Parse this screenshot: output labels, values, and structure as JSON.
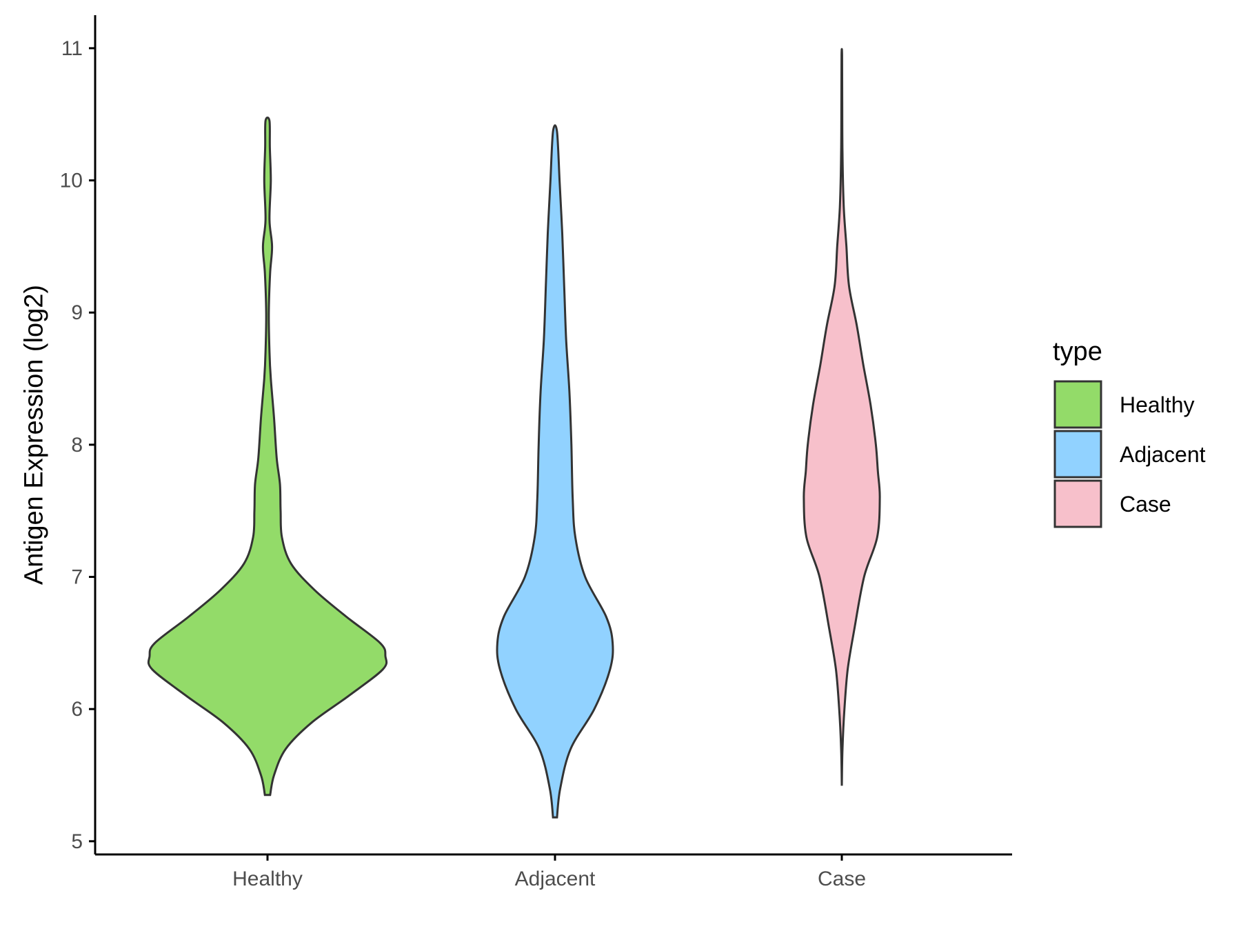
{
  "chart_data": {
    "type": "violin",
    "title": "",
    "xlabel": "",
    "ylabel": "Antigen Expression (log2)",
    "ylim": [
      4.9,
      11.25
    ],
    "yticks": [
      5,
      6,
      7,
      8,
      9,
      10,
      11
    ],
    "categories": [
      "Healthy",
      "Adjacent",
      "Case"
    ],
    "legend": {
      "title": "type",
      "position": "right",
      "entries": [
        "Healthy",
        "Adjacent",
        "Case"
      ]
    },
    "grid": false,
    "series": [
      {
        "name": "Healthy",
        "color": "#93db69",
        "min": 5.35,
        "max": 10.45,
        "density": [
          [
            5.35,
            0.02
          ],
          [
            5.5,
            0.05
          ],
          [
            5.7,
            0.14
          ],
          [
            5.9,
            0.34
          ],
          [
            6.1,
            0.62
          ],
          [
            6.3,
            0.88
          ],
          [
            6.4,
            0.9
          ],
          [
            6.5,
            0.86
          ],
          [
            6.7,
            0.6
          ],
          [
            6.9,
            0.36
          ],
          [
            7.1,
            0.18
          ],
          [
            7.3,
            0.11
          ],
          [
            7.5,
            0.1
          ],
          [
            7.7,
            0.095
          ],
          [
            7.9,
            0.07
          ],
          [
            8.2,
            0.05
          ],
          [
            8.5,
            0.025
          ],
          [
            8.7,
            0.015
          ],
          [
            9.0,
            0.01
          ],
          [
            9.3,
            0.02
          ],
          [
            9.5,
            0.035
          ],
          [
            9.7,
            0.015
          ],
          [
            10.0,
            0.025
          ],
          [
            10.25,
            0.018
          ],
          [
            10.45,
            0.015
          ]
        ]
      },
      {
        "name": "Adjacent",
        "color": "#91d2ff",
        "min": 5.18,
        "max": 10.37,
        "density": [
          [
            5.18,
            0.015
          ],
          [
            5.4,
            0.04
          ],
          [
            5.7,
            0.12
          ],
          [
            6.0,
            0.3
          ],
          [
            6.3,
            0.42
          ],
          [
            6.5,
            0.44
          ],
          [
            6.7,
            0.39
          ],
          [
            7.0,
            0.23
          ],
          [
            7.3,
            0.155
          ],
          [
            7.6,
            0.135
          ],
          [
            8.0,
            0.125
          ],
          [
            8.4,
            0.11
          ],
          [
            8.8,
            0.085
          ],
          [
            9.2,
            0.07
          ],
          [
            9.6,
            0.055
          ],
          [
            10.0,
            0.035
          ],
          [
            10.37,
            0.015
          ]
        ]
      },
      {
        "name": "Case",
        "color": "#f7c0cb",
        "min": 5.42,
        "max": 10.95,
        "density": [
          [
            5.42,
            0.0
          ],
          [
            5.7,
            0.005
          ],
          [
            6.0,
            0.02
          ],
          [
            6.3,
            0.045
          ],
          [
            6.6,
            0.095
          ],
          [
            7.0,
            0.17
          ],
          [
            7.3,
            0.27
          ],
          [
            7.6,
            0.29
          ],
          [
            7.8,
            0.275
          ],
          [
            8.0,
            0.26
          ],
          [
            8.3,
            0.22
          ],
          [
            8.6,
            0.165
          ],
          [
            8.9,
            0.115
          ],
          [
            9.2,
            0.055
          ],
          [
            9.5,
            0.035
          ],
          [
            9.8,
            0.015
          ],
          [
            10.2,
            0.005
          ],
          [
            10.6,
            0.003
          ],
          [
            10.95,
            0.002
          ]
        ]
      }
    ]
  }
}
